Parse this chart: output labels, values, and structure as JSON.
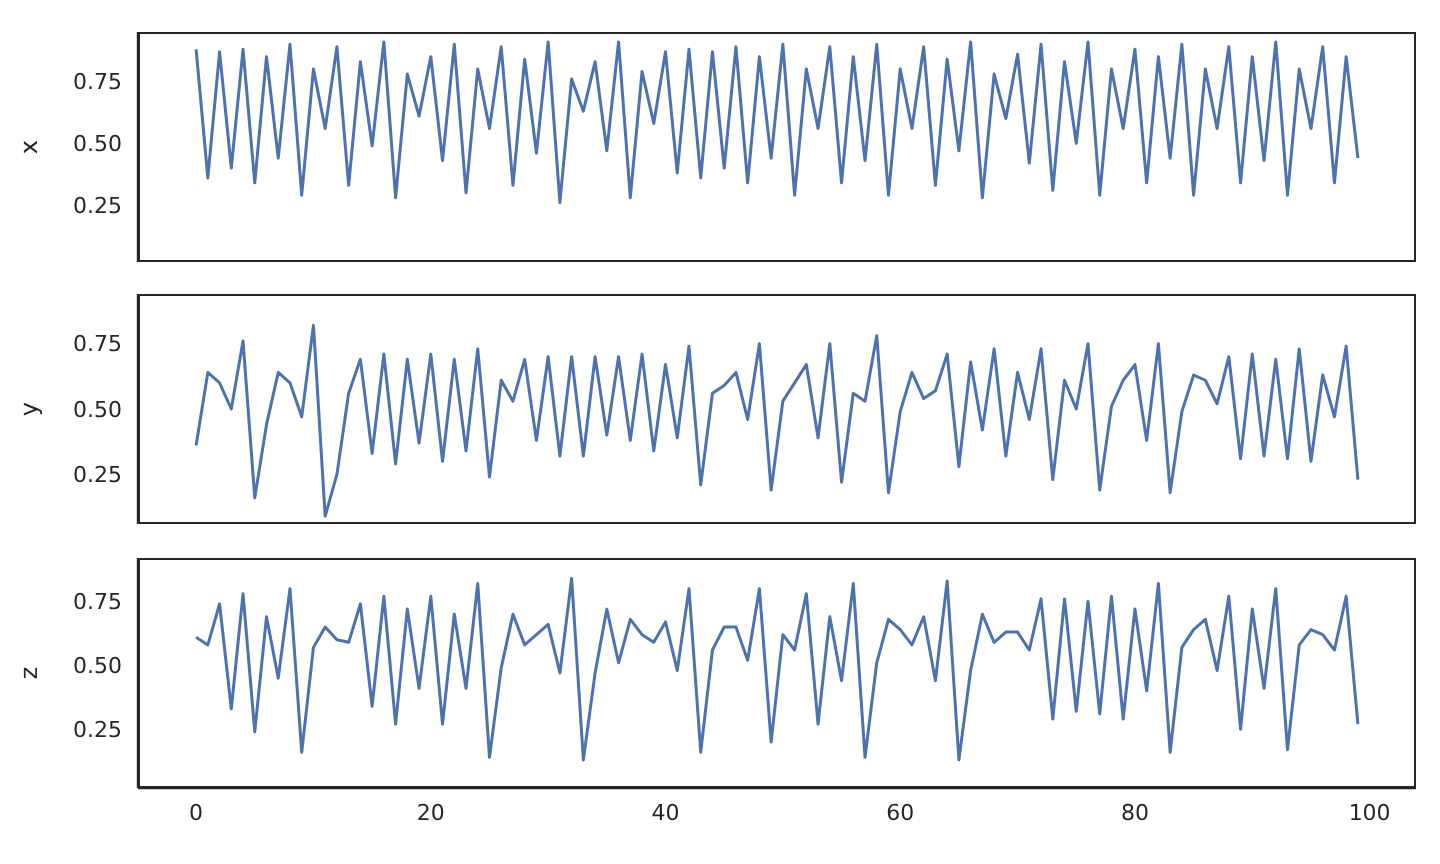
{
  "chart_data": [
    {
      "type": "line",
      "ylabel": "x",
      "tick_labels": "y",
      "xlim": [
        -4.95,
        103.95
      ],
      "xticks": [
        0,
        20,
        40,
        60,
        80,
        100
      ],
      "ylim": [
        0.02,
        0.95
      ],
      "yticks": [
        {
          "value": 0.25,
          "label": "0.25"
        },
        {
          "value": 0.5,
          "label": "0.50"
        },
        {
          "value": 0.75,
          "label": "0.75"
        }
      ],
      "x": [
        0,
        1,
        2,
        3,
        4,
        5,
        6,
        7,
        8,
        9,
        10,
        11,
        12,
        13,
        14,
        15,
        16,
        17,
        18,
        19,
        20,
        21,
        22,
        23,
        24,
        25,
        26,
        27,
        28,
        29,
        30,
        31,
        32,
        33,
        34,
        35,
        36,
        37,
        38,
        39,
        40,
        41,
        42,
        43,
        44,
        45,
        46,
        47,
        48,
        49,
        50,
        51,
        52,
        53,
        54,
        55,
        56,
        57,
        58,
        59,
        60,
        61,
        62,
        63,
        64,
        65,
        66,
        67,
        68,
        69,
        70,
        71,
        72,
        73,
        74,
        75,
        76,
        77,
        78,
        79,
        80,
        81,
        82,
        83,
        84,
        85,
        86,
        87,
        88,
        89,
        90,
        91,
        92,
        93,
        94,
        95,
        96,
        97,
        98,
        99
      ],
      "series": [
        {
          "color": "#4c72b0",
          "values": [
            0.88,
            0.36,
            0.87,
            0.4,
            0.88,
            0.34,
            0.85,
            0.44,
            0.9,
            0.29,
            0.8,
            0.56,
            0.89,
            0.33,
            0.83,
            0.49,
            0.91,
            0.28,
            0.78,
            0.61,
            0.85,
            0.43,
            0.9,
            0.3,
            0.8,
            0.56,
            0.89,
            0.33,
            0.84,
            0.46,
            0.91,
            0.26,
            0.76,
            0.63,
            0.83,
            0.47,
            0.91,
            0.28,
            0.79,
            0.58,
            0.87,
            0.38,
            0.88,
            0.36,
            0.87,
            0.4,
            0.89,
            0.34,
            0.85,
            0.44,
            0.9,
            0.29,
            0.8,
            0.56,
            0.89,
            0.34,
            0.85,
            0.43,
            0.9,
            0.29,
            0.8,
            0.56,
            0.89,
            0.33,
            0.84,
            0.47,
            0.91,
            0.28,
            0.78,
            0.6,
            0.86,
            0.42,
            0.9,
            0.31,
            0.83,
            0.5,
            0.91,
            0.29,
            0.8,
            0.56,
            0.88,
            0.34,
            0.85,
            0.44,
            0.9,
            0.29,
            0.8,
            0.56,
            0.89,
            0.34,
            0.85,
            0.43,
            0.91,
            0.29,
            0.8,
            0.56,
            0.89,
            0.34,
            0.85,
            0.44
          ]
        }
      ]
    },
    {
      "type": "line",
      "ylabel": "y",
      "tick_labels": "y",
      "xlim": [
        -4.95,
        103.95
      ],
      "xticks": [
        0,
        20,
        40,
        60,
        80,
        100
      ],
      "ylim": [
        0.06,
        0.94
      ],
      "yticks": [
        {
          "value": 0.25,
          "label": "0.25"
        },
        {
          "value": 0.5,
          "label": "0.50"
        },
        {
          "value": 0.75,
          "label": "0.75"
        }
      ],
      "x": [
        0,
        1,
        2,
        3,
        4,
        5,
        6,
        7,
        8,
        9,
        10,
        11,
        12,
        13,
        14,
        15,
        16,
        17,
        18,
        19,
        20,
        21,
        22,
        23,
        24,
        25,
        26,
        27,
        28,
        29,
        30,
        31,
        32,
        33,
        34,
        35,
        36,
        37,
        38,
        39,
        40,
        41,
        42,
        43,
        44,
        45,
        46,
        47,
        48,
        49,
        50,
        51,
        52,
        53,
        54,
        55,
        56,
        57,
        58,
        59,
        60,
        61,
        62,
        63,
        64,
        65,
        66,
        67,
        68,
        69,
        70,
        71,
        72,
        73,
        74,
        75,
        76,
        77,
        78,
        79,
        80,
        81,
        82,
        83,
        84,
        85,
        86,
        87,
        88,
        89,
        90,
        91,
        92,
        93,
        94,
        95,
        96,
        97,
        98,
        99
      ],
      "series": [
        {
          "color": "#4c72b0",
          "values": [
            0.36,
            0.64,
            0.6,
            0.5,
            0.76,
            0.16,
            0.44,
            0.64,
            0.6,
            0.47,
            0.82,
            0.09,
            0.25,
            0.56,
            0.69,
            0.33,
            0.71,
            0.29,
            0.69,
            0.37,
            0.71,
            0.3,
            0.69,
            0.34,
            0.73,
            0.24,
            0.61,
            0.53,
            0.69,
            0.38,
            0.7,
            0.32,
            0.7,
            0.32,
            0.7,
            0.4,
            0.7,
            0.38,
            0.71,
            0.34,
            0.67,
            0.39,
            0.74,
            0.21,
            0.56,
            0.59,
            0.64,
            0.46,
            0.75,
            0.19,
            0.53,
            0.6,
            0.67,
            0.39,
            0.75,
            0.22,
            0.56,
            0.53,
            0.78,
            0.18,
            0.49,
            0.64,
            0.54,
            0.57,
            0.71,
            0.28,
            0.68,
            0.42,
            0.73,
            0.32,
            0.64,
            0.46,
            0.73,
            0.23,
            0.61,
            0.5,
            0.75,
            0.19,
            0.51,
            0.61,
            0.67,
            0.38,
            0.75,
            0.18,
            0.49,
            0.63,
            0.61,
            0.52,
            0.7,
            0.31,
            0.71,
            0.32,
            0.69,
            0.31,
            0.73,
            0.3,
            0.63,
            0.47,
            0.74,
            0.23
          ]
        }
      ]
    },
    {
      "type": "line",
      "ylabel": "z",
      "xlim": [
        -4.95,
        103.95
      ],
      "xticks": [
        0,
        20,
        40,
        60,
        80,
        100
      ],
      "ylim": [
        0.02,
        0.92
      ],
      "yticks": [
        {
          "value": 0.25,
          "label": "0.25"
        },
        {
          "value": 0.5,
          "label": "0.50"
        },
        {
          "value": 0.75,
          "label": "0.75"
        }
      ],
      "x": [
        0,
        1,
        2,
        3,
        4,
        5,
        6,
        7,
        8,
        9,
        10,
        11,
        12,
        13,
        14,
        15,
        16,
        17,
        18,
        19,
        20,
        21,
        22,
        23,
        24,
        25,
        26,
        27,
        28,
        29,
        30,
        31,
        32,
        33,
        34,
        35,
        36,
        37,
        38,
        39,
        40,
        41,
        42,
        43,
        44,
        45,
        46,
        47,
        48,
        49,
        50,
        51,
        52,
        53,
        54,
        55,
        56,
        57,
        58,
        59,
        60,
        61,
        62,
        63,
        64,
        65,
        66,
        67,
        68,
        69,
        70,
        71,
        72,
        73,
        74,
        75,
        76,
        77,
        78,
        79,
        80,
        81,
        82,
        83,
        84,
        85,
        86,
        87,
        88,
        89,
        90,
        91,
        92,
        93,
        94,
        95,
        96,
        97,
        98,
        99
      ],
      "series": [
        {
          "color": "#4c72b0",
          "values": [
            0.61,
            0.58,
            0.74,
            0.33,
            0.78,
            0.24,
            0.69,
            0.45,
            0.8,
            0.16,
            0.57,
            0.65,
            0.6,
            0.59,
            0.74,
            0.34,
            0.77,
            0.27,
            0.72,
            0.41,
            0.77,
            0.27,
            0.7,
            0.41,
            0.82,
            0.14,
            0.49,
            0.7,
            0.58,
            0.62,
            0.66,
            0.47,
            0.84,
            0.13,
            0.47,
            0.72,
            0.51,
            0.68,
            0.62,
            0.59,
            0.67,
            0.48,
            0.8,
            0.16,
            0.56,
            0.65,
            0.65,
            0.52,
            0.8,
            0.2,
            0.62,
            0.56,
            0.78,
            0.27,
            0.69,
            0.44,
            0.82,
            0.14,
            0.51,
            0.68,
            0.64,
            0.58,
            0.69,
            0.44,
            0.83,
            0.13,
            0.48,
            0.7,
            0.59,
            0.63,
            0.63,
            0.56,
            0.76,
            0.29,
            0.76,
            0.32,
            0.75,
            0.31,
            0.77,
            0.29,
            0.72,
            0.4,
            0.82,
            0.16,
            0.57,
            0.64,
            0.68,
            0.48,
            0.77,
            0.25,
            0.72,
            0.41,
            0.8,
            0.17,
            0.58,
            0.64,
            0.62,
            0.56,
            0.77,
            0.27
          ]
        }
      ]
    }
  ]
}
